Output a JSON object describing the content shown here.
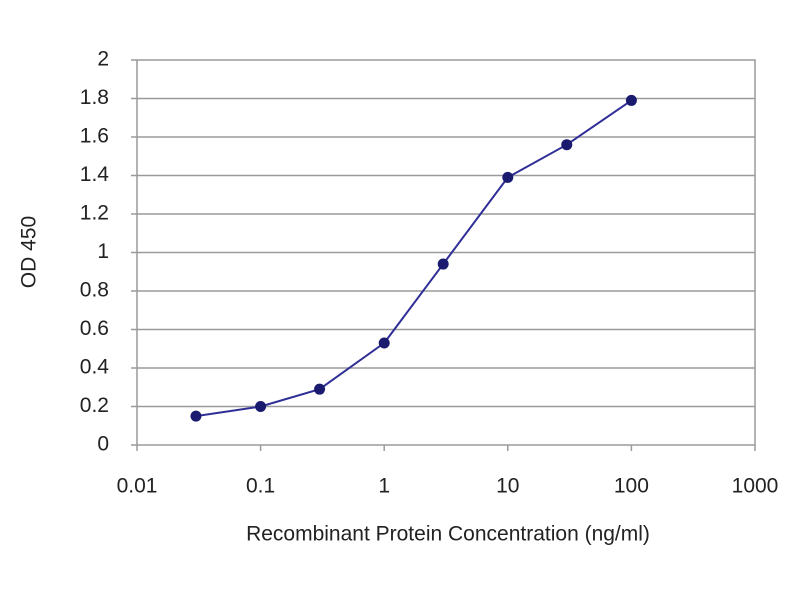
{
  "chart_data": {
    "type": "line",
    "x_label": "Recombinant Protein Concentration (ng/ml)",
    "y_label": "OD 450",
    "x": [
      0.03,
      0.1,
      0.3,
      1,
      3,
      10,
      30,
      100
    ],
    "values": [
      0.15,
      0.2,
      0.29,
      0.53,
      0.94,
      1.39,
      1.56,
      1.79
    ],
    "color": "#2e2e96",
    "marker_color": "#1a1a6e",
    "xscale": "log",
    "xlim": [
      0.01,
      1000
    ],
    "xticks": [
      0.01,
      0.1,
      1,
      10,
      100,
      1000
    ],
    "ylim": [
      0,
      2
    ],
    "yticks": [
      0,
      0.2,
      0.4,
      0.6,
      0.8,
      1,
      1.2,
      1.4,
      1.6,
      1.8,
      2
    ],
    "grid": true
  }
}
